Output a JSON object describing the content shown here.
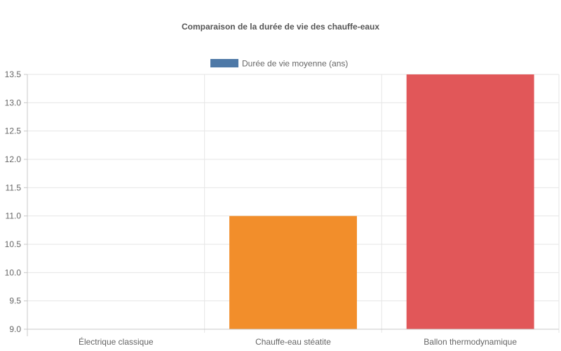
{
  "chart_data": {
    "type": "bar",
    "title": "Comparaison de la durée de vie des chauffe-eaux",
    "categories": [
      "Électrique classique",
      "Chauffe-eau stéatite",
      "Ballon thermodynamique"
    ],
    "series": [
      {
        "name": "Durée de vie moyenne (ans)",
        "values": [
          9,
          11,
          13.5
        ],
        "colors": [
          "#4e79a7",
          "#f28e2b",
          "#e15759"
        ]
      }
    ],
    "legend_color": "#4e79a7",
    "legend_position": "top",
    "ylim": [
      9,
      13.5
    ],
    "yticks": [
      "13.5",
      "13.0",
      "12.5",
      "12.0",
      "11.5",
      "11.0",
      "10.5",
      "10.0",
      "9.5",
      "9.0"
    ],
    "grid": true
  }
}
